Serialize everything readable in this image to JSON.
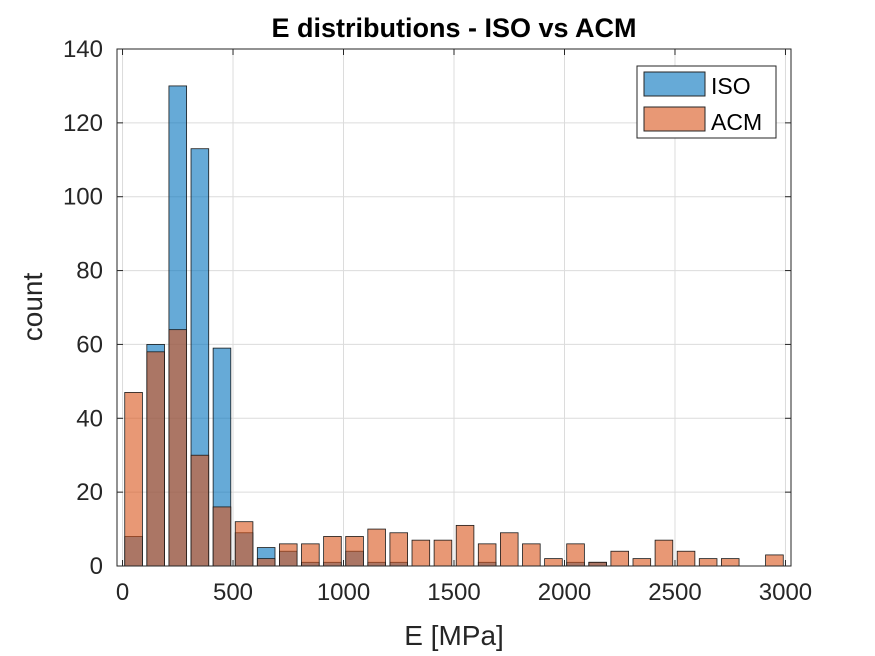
{
  "chart_data": {
    "type": "bar",
    "title": "E distributions - ISO vs ACM",
    "xlabel": "E [MPa]",
    "ylabel": "count",
    "xlim": [
      -25,
      3025
    ],
    "ylim": [
      0,
      140
    ],
    "xticks": [
      0,
      500,
      1000,
      1500,
      2000,
      2500,
      3000
    ],
    "yticks": [
      0,
      20,
      40,
      60,
      80,
      100,
      120,
      140
    ],
    "grid": true,
    "legend_position": "top-right",
    "bin_width": 100,
    "bin_centers": [
      50,
      150,
      250,
      350,
      450,
      550,
      650,
      750,
      850,
      950,
      1050,
      1150,
      1250,
      1350,
      1450,
      1550,
      1650,
      1750,
      1850,
      1950,
      2050,
      2150,
      2250,
      2350,
      2450,
      2550,
      2650,
      2750,
      2850,
      2950
    ],
    "series": [
      {
        "name": "ISO",
        "color": "#0072BD",
        "values": [
          8,
          60,
          130,
          113,
          59,
          9,
          5,
          4,
          1,
          1,
          4,
          1,
          1,
          0,
          0,
          0,
          1,
          0,
          0,
          0,
          1,
          1,
          0,
          0,
          0,
          0,
          0,
          0,
          0,
          0
        ]
      },
      {
        "name": "ACM",
        "color": "#D95319",
        "values": [
          47,
          58,
          64,
          30,
          16,
          12,
          2,
          6,
          6,
          8,
          8,
          10,
          9,
          7,
          7,
          11,
          6,
          9,
          6,
          2,
          6,
          1,
          4,
          2,
          7,
          4,
          2,
          2,
          0,
          3
        ]
      }
    ]
  }
}
